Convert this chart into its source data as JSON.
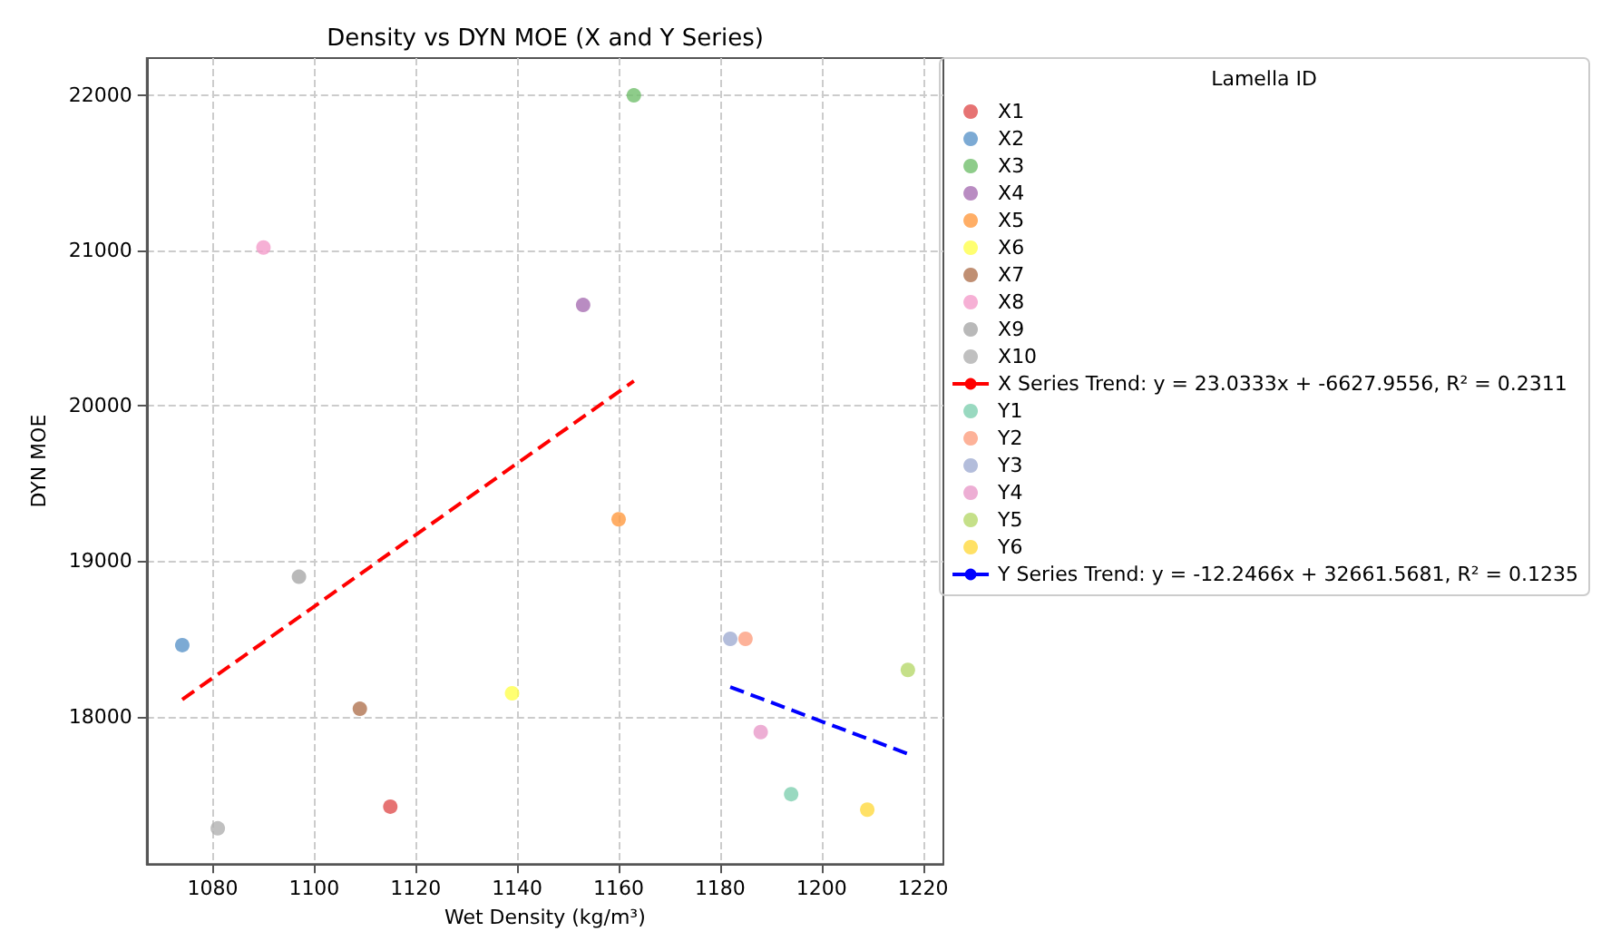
{
  "chart_data": {
    "type": "scatter",
    "title": "Density vs DYN MOE (X and Y Series)",
    "xlabel": "Wet Density (kg/m³)",
    "ylabel": "DYN MOE",
    "legend_title": "Lamella ID",
    "xlim": [
      1067,
      1224
    ],
    "xticks": [
      1080,
      1100,
      1120,
      1140,
      1160,
      1180,
      1200,
      1220
    ],
    "ylim": [
      17050,
      22240
    ],
    "yticks": [
      18000,
      19000,
      20000,
      21000,
      22000
    ],
    "grid": true,
    "legend": "right",
    "marker": "circle",
    "series": [
      {
        "name": "X1",
        "color": "#e05050",
        "x": [
          1115
        ],
        "values": [
          17420
        ]
      },
      {
        "name": "X2",
        "color": "#5b95c9",
        "x": [
          1074
        ],
        "values": [
          18460
        ]
      },
      {
        "name": "X3",
        "color": "#72bf6d",
        "x": [
          1163
        ],
        "values": [
          22000
        ]
      },
      {
        "name": "X4",
        "color": "#a86fb3",
        "x": [
          1153
        ],
        "values": [
          20650
        ]
      },
      {
        "name": "X5",
        "color": "#ff9a40",
        "x": [
          1160
        ],
        "values": [
          19270
        ]
      },
      {
        "name": "X6",
        "color": "#ffff4d",
        "x": [
          1139
        ],
        "values": [
          18150
        ]
      },
      {
        "name": "X7",
        "color": "#b07350",
        "x": [
          1109
        ],
        "values": [
          18050
        ]
      },
      {
        "name": "X8",
        "color": "#f49ccb",
        "x": [
          1090
        ],
        "values": [
          21020
        ]
      },
      {
        "name": "X9",
        "color": "#a8a8a8",
        "x": [
          1097
        ],
        "values": [
          18900
        ]
      },
      {
        "name": "X10",
        "color": "#b0b0b0",
        "x": [
          1081
        ],
        "values": [
          17280
        ]
      },
      {
        "name": "X Series Trend: y = 23.0333x + -6627.9556, R² = 0.2311",
        "type": "line",
        "color": "#ff0000",
        "line_style": "dashed",
        "marker": "none",
        "x": [
          1074,
          1163
        ],
        "values": [
          18110,
          20160
        ]
      },
      {
        "name": "Y1",
        "color": "#7fcfb0",
        "x": [
          1194
        ],
        "values": [
          17500
        ]
      },
      {
        "name": "Y2",
        "color": "#fc9f80",
        "x": [
          1185
        ],
        "values": [
          18500
        ]
      },
      {
        "name": "Y3",
        "color": "#a0acd2",
        "x": [
          1182
        ],
        "values": [
          18500
        ]
      },
      {
        "name": "Y4",
        "color": "#e99ac9",
        "x": [
          1188
        ],
        "values": [
          17900
        ]
      },
      {
        "name": "Y5",
        "color": "#b6d86b",
        "x": [
          1217
        ],
        "values": [
          18300
        ]
      },
      {
        "name": "Y6",
        "color": "#ffd940",
        "x": [
          1209
        ],
        "values": [
          17400
        ]
      },
      {
        "name": "Y Series Trend: y = -12.2466x + 32661.5681, R² = 0.1235",
        "type": "line",
        "color": "#0000ff",
        "line_style": "dashed",
        "marker": "none",
        "x": [
          1182,
          1217
        ],
        "values": [
          18190,
          17760
        ]
      }
    ]
  }
}
